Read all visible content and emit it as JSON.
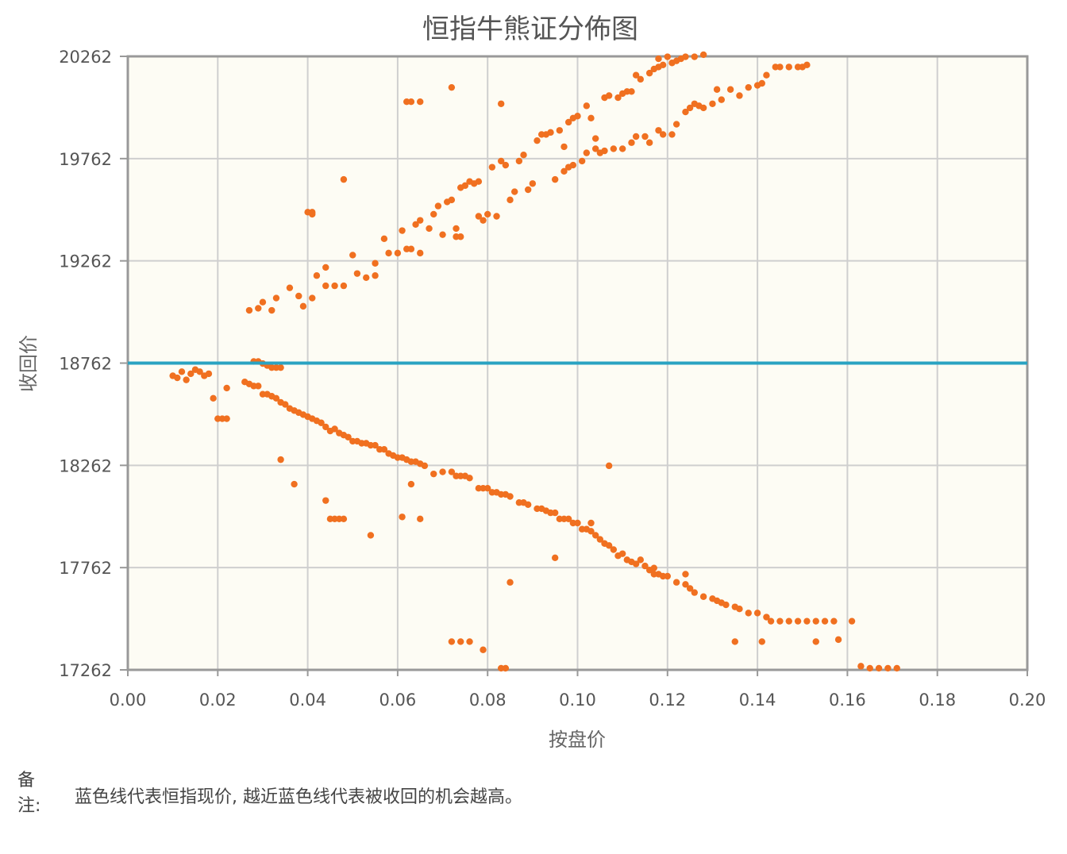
{
  "chart_data": {
    "type": "scatter",
    "title": "恒指牛熊证分佈图",
    "xlabel": "按盘价",
    "ylabel": "收回价",
    "xlim": [
      0.0,
      0.2
    ],
    "ylim": [
      17262,
      20262
    ],
    "x_ticks": [
      "0.00",
      "0.02",
      "0.04",
      "0.06",
      "0.08",
      "0.10",
      "0.12",
      "0.14",
      "0.16",
      "0.18",
      "0.20"
    ],
    "y_ticks": [
      "17262",
      "17762",
      "18262",
      "18762",
      "19262",
      "19762",
      "20262"
    ],
    "grid": true,
    "reference_line": {
      "value": 18762,
      "color": "#2aa3c2"
    },
    "point_color": "#f07020",
    "series": [
      {
        "points": [
          [
            0.027,
            19020
          ],
          [
            0.029,
            19030
          ],
          [
            0.03,
            19060
          ],
          [
            0.032,
            19020
          ],
          [
            0.033,
            19080
          ],
          [
            0.036,
            19130
          ],
          [
            0.038,
            19090
          ],
          [
            0.039,
            19040
          ],
          [
            0.041,
            19080
          ],
          [
            0.042,
            19190
          ],
          [
            0.044,
            19230
          ],
          [
            0.044,
            19140
          ],
          [
            0.046,
            19140
          ],
          [
            0.048,
            19140
          ],
          [
            0.05,
            19290
          ],
          [
            0.051,
            19200
          ],
          [
            0.053,
            19180
          ],
          [
            0.055,
            19190
          ],
          [
            0.055,
            19250
          ],
          [
            0.057,
            19370
          ],
          [
            0.058,
            19300
          ],
          [
            0.06,
            19300
          ],
          [
            0.061,
            19410
          ],
          [
            0.062,
            19320
          ],
          [
            0.063,
            19320
          ],
          [
            0.064,
            19440
          ],
          [
            0.065,
            19460
          ],
          [
            0.065,
            19300
          ],
          [
            0.067,
            19420
          ],
          [
            0.068,
            19490
          ],
          [
            0.069,
            19530
          ],
          [
            0.07,
            19390
          ],
          [
            0.071,
            19550
          ],
          [
            0.072,
            19560
          ],
          [
            0.073,
            19380
          ],
          [
            0.073,
            19420
          ],
          [
            0.074,
            19380
          ],
          [
            0.074,
            19620
          ],
          [
            0.075,
            19630
          ],
          [
            0.076,
            19650
          ],
          [
            0.077,
            19640
          ],
          [
            0.078,
            19480
          ],
          [
            0.078,
            19650
          ],
          [
            0.079,
            19460
          ],
          [
            0.08,
            19490
          ],
          [
            0.081,
            19720
          ],
          [
            0.082,
            19480
          ],
          [
            0.083,
            19750
          ],
          [
            0.084,
            19730
          ],
          [
            0.085,
            19560
          ],
          [
            0.086,
            19600
          ],
          [
            0.087,
            19750
          ],
          [
            0.088,
            19780
          ],
          [
            0.089,
            19610
          ],
          [
            0.09,
            19640
          ],
          [
            0.091,
            19850
          ],
          [
            0.092,
            19880
          ],
          [
            0.093,
            19880
          ],
          [
            0.094,
            19890
          ],
          [
            0.095,
            19660
          ],
          [
            0.096,
            19900
          ],
          [
            0.097,
            19820
          ],
          [
            0.098,
            19940
          ],
          [
            0.099,
            19960
          ],
          [
            0.1,
            19970
          ],
          [
            0.102,
            20020
          ],
          [
            0.103,
            19960
          ],
          [
            0.104,
            19860
          ],
          [
            0.106,
            20060
          ],
          [
            0.107,
            20070
          ],
          [
            0.109,
            20060
          ],
          [
            0.11,
            20080
          ],
          [
            0.111,
            20090
          ],
          [
            0.112,
            20090
          ],
          [
            0.113,
            20170
          ],
          [
            0.114,
            20150
          ],
          [
            0.116,
            20180
          ],
          [
            0.117,
            20200
          ],
          [
            0.118,
            20210
          ],
          [
            0.118,
            20250
          ],
          [
            0.119,
            20220
          ],
          [
            0.12,
            20260
          ],
          [
            0.121,
            20230
          ],
          [
            0.122,
            20240
          ],
          [
            0.123,
            20250
          ],
          [
            0.124,
            20260
          ],
          [
            0.126,
            20260
          ],
          [
            0.128,
            20270
          ],
          [
            0.097,
            19700
          ],
          [
            0.098,
            19720
          ],
          [
            0.099,
            19730
          ],
          [
            0.101,
            19750
          ],
          [
            0.102,
            19790
          ],
          [
            0.104,
            19810
          ],
          [
            0.105,
            19790
          ],
          [
            0.106,
            19800
          ],
          [
            0.108,
            19810
          ],
          [
            0.11,
            19810
          ],
          [
            0.112,
            19840
          ],
          [
            0.113,
            19870
          ],
          [
            0.115,
            19870
          ],
          [
            0.116,
            19840
          ],
          [
            0.118,
            19900
          ],
          [
            0.119,
            19880
          ],
          [
            0.121,
            19880
          ],
          [
            0.122,
            19930
          ],
          [
            0.124,
            19990
          ],
          [
            0.125,
            20010
          ],
          [
            0.126,
            20030
          ],
          [
            0.127,
            20020
          ],
          [
            0.128,
            20010
          ],
          [
            0.13,
            20030
          ],
          [
            0.131,
            20100
          ],
          [
            0.132,
            20050
          ],
          [
            0.134,
            20100
          ],
          [
            0.136,
            20070
          ],
          [
            0.138,
            20110
          ],
          [
            0.14,
            20120
          ],
          [
            0.141,
            20130
          ],
          [
            0.142,
            20170
          ],
          [
            0.144,
            20210
          ],
          [
            0.145,
            20210
          ],
          [
            0.147,
            20210
          ],
          [
            0.149,
            20210
          ],
          [
            0.15,
            20210
          ],
          [
            0.151,
            20220
          ],
          [
            0.04,
            19500
          ],
          [
            0.041,
            19500
          ],
          [
            0.041,
            19490
          ],
          [
            0.048,
            19660
          ],
          [
            0.062,
            20040
          ],
          [
            0.063,
            20040
          ],
          [
            0.065,
            20040
          ],
          [
            0.072,
            20110
          ],
          [
            0.083,
            20030
          ]
        ]
      },
      {
        "points": [
          [
            0.01,
            18700
          ],
          [
            0.011,
            18690
          ],
          [
            0.012,
            18720
          ],
          [
            0.013,
            18680
          ],
          [
            0.014,
            18710
          ],
          [
            0.015,
            18730
          ],
          [
            0.016,
            18720
          ],
          [
            0.017,
            18700
          ],
          [
            0.018,
            18710
          ],
          [
            0.019,
            18590
          ],
          [
            0.02,
            18490
          ],
          [
            0.021,
            18490
          ],
          [
            0.022,
            18490
          ],
          [
            0.022,
            18640
          ],
          [
            0.026,
            18670
          ],
          [
            0.027,
            18660
          ],
          [
            0.028,
            18650
          ],
          [
            0.029,
            18650
          ],
          [
            0.03,
            18610
          ],
          [
            0.031,
            18610
          ],
          [
            0.032,
            18600
          ],
          [
            0.033,
            18590
          ],
          [
            0.034,
            18570
          ],
          [
            0.035,
            18560
          ],
          [
            0.036,
            18540
          ],
          [
            0.037,
            18530
          ],
          [
            0.038,
            18520
          ],
          [
            0.039,
            18510
          ],
          [
            0.04,
            18500
          ],
          [
            0.041,
            18490
          ],
          [
            0.042,
            18480
          ],
          [
            0.043,
            18470
          ],
          [
            0.044,
            18450
          ],
          [
            0.045,
            18430
          ],
          [
            0.046,
            18440
          ],
          [
            0.047,
            18420
          ],
          [
            0.048,
            18410
          ],
          [
            0.049,
            18400
          ],
          [
            0.05,
            18380
          ],
          [
            0.051,
            18380
          ],
          [
            0.052,
            18370
          ],
          [
            0.053,
            18370
          ],
          [
            0.054,
            18360
          ],
          [
            0.055,
            18360
          ],
          [
            0.056,
            18340
          ],
          [
            0.057,
            18340
          ],
          [
            0.058,
            18320
          ],
          [
            0.059,
            18310
          ],
          [
            0.06,
            18300
          ],
          [
            0.061,
            18300
          ],
          [
            0.062,
            18290
          ],
          [
            0.063,
            18280
          ],
          [
            0.064,
            18280
          ],
          [
            0.065,
            18270
          ],
          [
            0.066,
            18260
          ],
          [
            0.068,
            18220
          ],
          [
            0.07,
            18230
          ],
          [
            0.072,
            18230
          ],
          [
            0.073,
            18210
          ],
          [
            0.074,
            18210
          ],
          [
            0.075,
            18210
          ],
          [
            0.076,
            18200
          ],
          [
            0.078,
            18150
          ],
          [
            0.079,
            18150
          ],
          [
            0.08,
            18150
          ],
          [
            0.081,
            18130
          ],
          [
            0.082,
            18130
          ],
          [
            0.083,
            18120
          ],
          [
            0.084,
            18120
          ],
          [
            0.085,
            18110
          ],
          [
            0.087,
            18080
          ],
          [
            0.088,
            18080
          ],
          [
            0.089,
            18070
          ],
          [
            0.091,
            18050
          ],
          [
            0.092,
            18050
          ],
          [
            0.093,
            18040
          ],
          [
            0.094,
            18030
          ],
          [
            0.095,
            18030
          ],
          [
            0.096,
            18000
          ],
          [
            0.097,
            18000
          ],
          [
            0.098,
            18000
          ],
          [
            0.099,
            17980
          ],
          [
            0.1,
            17980
          ],
          [
            0.101,
            17950
          ],
          [
            0.102,
            17950
          ],
          [
            0.103,
            17940
          ],
          [
            0.104,
            17920
          ],
          [
            0.105,
            17900
          ],
          [
            0.106,
            17880
          ],
          [
            0.107,
            17870
          ],
          [
            0.108,
            17850
          ],
          [
            0.109,
            17820
          ],
          [
            0.11,
            17830
          ],
          [
            0.111,
            17800
          ],
          [
            0.112,
            17790
          ],
          [
            0.113,
            17780
          ],
          [
            0.114,
            17800
          ],
          [
            0.115,
            17770
          ],
          [
            0.116,
            17750
          ],
          [
            0.117,
            17760
          ],
          [
            0.118,
            17730
          ],
          [
            0.119,
            17720
          ],
          [
            0.12,
            17720
          ],
          [
            0.122,
            17690
          ],
          [
            0.124,
            17680
          ],
          [
            0.125,
            17660
          ],
          [
            0.126,
            17640
          ],
          [
            0.128,
            17620
          ],
          [
            0.13,
            17610
          ],
          [
            0.131,
            17600
          ],
          [
            0.132,
            17590
          ],
          [
            0.133,
            17580
          ],
          [
            0.135,
            17570
          ],
          [
            0.136,
            17560
          ],
          [
            0.138,
            17540
          ],
          [
            0.14,
            17540
          ],
          [
            0.142,
            17520
          ],
          [
            0.143,
            17500
          ],
          [
            0.145,
            17500
          ],
          [
            0.147,
            17500
          ],
          [
            0.149,
            17500
          ],
          [
            0.151,
            17500
          ],
          [
            0.153,
            17500
          ],
          [
            0.155,
            17500
          ],
          [
            0.157,
            17500
          ],
          [
            0.161,
            17500
          ],
          [
            0.028,
            18770
          ],
          [
            0.029,
            18770
          ],
          [
            0.03,
            18760
          ],
          [
            0.031,
            18750
          ],
          [
            0.032,
            18740
          ],
          [
            0.033,
            18740
          ],
          [
            0.034,
            18740
          ],
          [
            0.034,
            18290
          ],
          [
            0.037,
            18170
          ],
          [
            0.044,
            18090
          ],
          [
            0.045,
            18000
          ],
          [
            0.046,
            18000
          ],
          [
            0.047,
            18000
          ],
          [
            0.048,
            18000
          ],
          [
            0.054,
            17920
          ],
          [
            0.061,
            18010
          ],
          [
            0.063,
            18170
          ],
          [
            0.065,
            18000
          ],
          [
            0.072,
            17400
          ],
          [
            0.074,
            17400
          ],
          [
            0.076,
            17400
          ],
          [
            0.079,
            17360
          ],
          [
            0.083,
            17270
          ],
          [
            0.084,
            17270
          ],
          [
            0.085,
            17690
          ],
          [
            0.095,
            17810
          ],
          [
            0.103,
            17980
          ],
          [
            0.107,
            18260
          ],
          [
            0.117,
            17730
          ],
          [
            0.124,
            17730
          ],
          [
            0.135,
            17400
          ],
          [
            0.141,
            17400
          ],
          [
            0.153,
            17400
          ],
          [
            0.158,
            17410
          ],
          [
            0.163,
            17280
          ],
          [
            0.165,
            17270
          ],
          [
            0.167,
            17270
          ],
          [
            0.169,
            17270
          ],
          [
            0.171,
            17270
          ]
        ]
      }
    ]
  },
  "note": {
    "label": "备注:",
    "text": "蓝色线代表恒指现价, 越近蓝色线代表被收回的机会越高。"
  }
}
